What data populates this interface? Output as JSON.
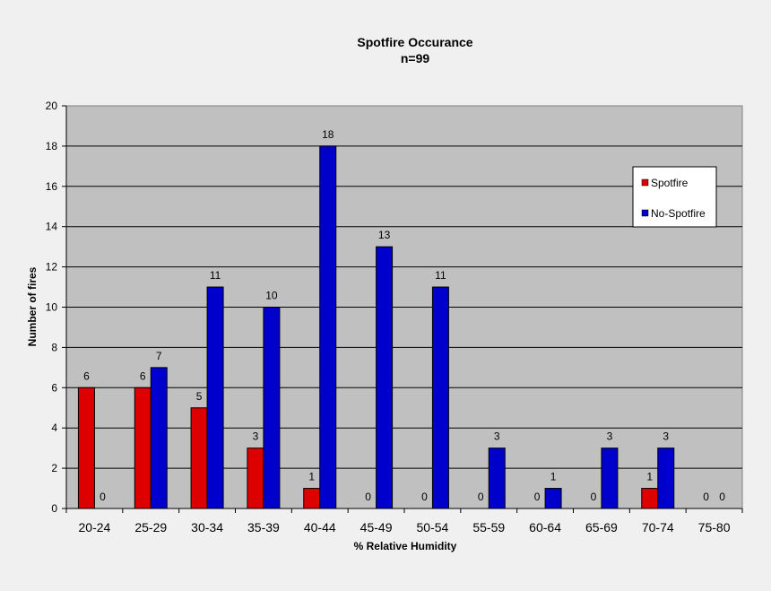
{
  "chart_data": {
    "type": "bar",
    "title": "Spotfire Occurance",
    "subtitle": "n=99",
    "xlabel": "% Relative Humidity",
    "ylabel": "Number of fires",
    "ylim": [
      0,
      20
    ],
    "yticks": [
      0,
      2,
      4,
      6,
      8,
      10,
      12,
      14,
      16,
      18,
      20
    ],
    "grid": true,
    "legend_position": "top-right",
    "categories": [
      "20-24",
      "25-29",
      "30-34",
      "35-39",
      "40-44",
      "45-49",
      "50-54",
      "55-59",
      "60-64",
      "65-69",
      "70-74",
      "75-80"
    ],
    "series": [
      {
        "name": "Spotfire",
        "color": "#dd0000",
        "values": [
          6,
          6,
          5,
          3,
          1,
          0,
          0,
          0,
          0,
          0,
          1,
          0
        ]
      },
      {
        "name": "No-Spotfire",
        "color": "#0000cc",
        "values": [
          0,
          7,
          11,
          10,
          18,
          13,
          11,
          3,
          1,
          3,
          3,
          0
        ]
      }
    ],
    "plot_background": "#c0c0c0",
    "page_background": "#f0f0f0"
  }
}
